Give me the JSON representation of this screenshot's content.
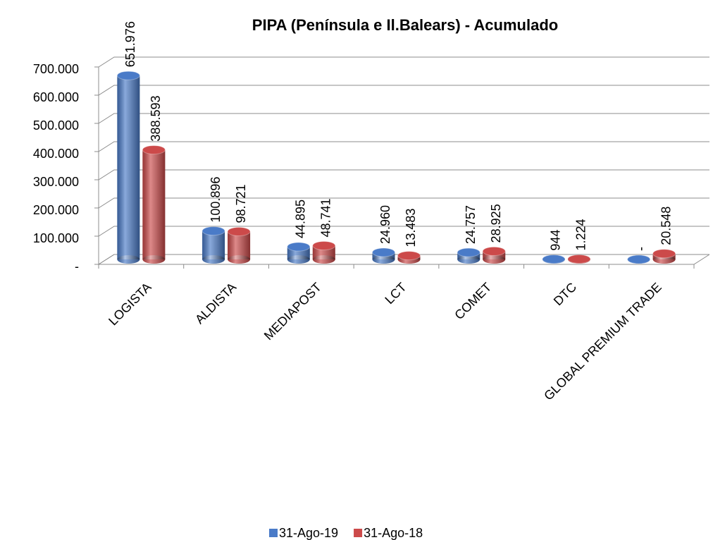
{
  "chart_data": {
    "type": "bar3d",
    "title": "PIPA  (Península e Il.Balears) - Acumulado",
    "categories": [
      "LOGISTA",
      "ALDISTA",
      "MEDIAPOST",
      "LCT",
      "COMET",
      "DTC",
      "GLOBAL PREMIUM TRADE"
    ],
    "series": [
      {
        "name": "31-Ago-19",
        "color": "#4a7bc8",
        "values": [
          651976,
          100896,
          44895,
          24960,
          24757,
          944,
          0
        ],
        "value_labels": [
          "651.976",
          "100.896",
          "44.895",
          "24.960",
          "24.757",
          "944",
          "-"
        ]
      },
      {
        "name": "31-Ago-18",
        "color": "#cc4a4a",
        "values": [
          388593,
          98721,
          48741,
          13483,
          28925,
          1224,
          20548
        ],
        "value_labels": [
          "388.593",
          "98.721",
          "48.741",
          "13.483",
          "28.925",
          "1.224",
          "20.548"
        ]
      }
    ],
    "ylim": [
      0,
      700000
    ],
    "yticks": [
      {
        "value": 0,
        "label": "-"
      },
      {
        "value": 100000,
        "label": "100.000"
      },
      {
        "value": 200000,
        "label": "200.000"
      },
      {
        "value": 300000,
        "label": "300.000"
      },
      {
        "value": 400000,
        "label": "400.000"
      },
      {
        "value": 500000,
        "label": "500.000"
      },
      {
        "value": 600000,
        "label": "600.000"
      },
      {
        "value": 700000,
        "label": "700.000"
      }
    ],
    "grid": true,
    "legend": "bottom"
  }
}
